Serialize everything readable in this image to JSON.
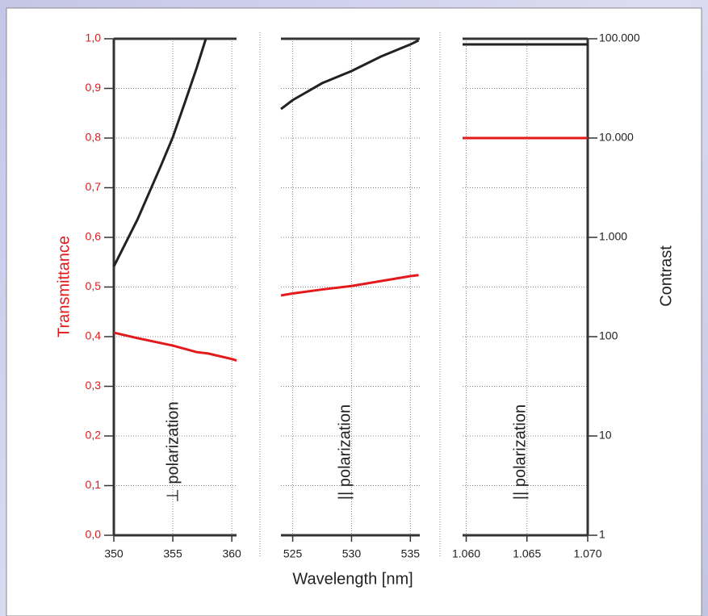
{
  "chart_data": [
    {
      "type": "line",
      "ylabel": "Transmittance",
      "annotation": "⊥ polarization",
      "x": [
        350,
        352,
        354,
        355,
        356,
        357,
        357.8
      ],
      "xlim": [
        350,
        360.4
      ],
      "xticks": [
        350,
        355,
        360
      ],
      "ylim": [
        0,
        1
      ],
      "yticks": [
        {
          "value": 0,
          "label": "0,0"
        },
        {
          "value": 0.1,
          "label": "0,1"
        },
        {
          "value": 0.2,
          "label": "0,2"
        },
        {
          "value": 0.3,
          "label": "0,3"
        },
        {
          "value": 0.4,
          "label": "0,4"
        },
        {
          "value": 0.5,
          "label": "0,5"
        },
        {
          "value": 0.6,
          "label": "0,6"
        },
        {
          "value": 0.7,
          "label": "0,7"
        },
        {
          "value": 0.8,
          "label": "0,8"
        },
        {
          "value": 0.9,
          "label": "0,9"
        },
        {
          "value": 1,
          "label": "1,0"
        }
      ],
      "y2lim": [
        1,
        100000
      ],
      "y2log": true,
      "grid": true,
      "series": [
        {
          "color": "#222222",
          "axis": "y2",
          "values": [
            509,
            1510,
            5300,
            10200,
            22400,
            50000,
            100000
          ]
        },
        {
          "color": "#e3191c",
          "x": [
            350,
            352,
            355,
            357,
            358,
            360,
            360.4
          ],
          "values": [
            0.408,
            0.397,
            0.382,
            0.369,
            0.366,
            0.355,
            0.352
          ]
        }
      ]
    },
    {
      "type": "line",
      "xlabel": "Wavelength [nm]",
      "annotation": "|| polarization",
      "x": [
        524,
        525,
        527.5,
        530,
        532.5,
        535,
        535.7
      ],
      "xlim": [
        524,
        535.8
      ],
      "xticks": [
        525,
        530,
        535
      ],
      "ylim": [
        0,
        1
      ],
      "y2lim": [
        1,
        100000
      ],
      "y2log": true,
      "grid": true,
      "series": [
        {
          "color": "#222222",
          "axis": "y2",
          "values": [
            19600,
            24100,
            35700,
            47300,
            66200,
            87700,
            96300
          ]
        },
        {
          "color": "#e3191c",
          "values": [
            0.483,
            0.487,
            0.495,
            0.502,
            0.512,
            0.522,
            0.524
          ]
        }
      ]
    },
    {
      "type": "line",
      "y2label": "Contrast",
      "annotation": "|| polarization",
      "x": [
        1.0597,
        1.07
      ],
      "xlim": [
        1.0597,
        1.07
      ],
      "xticks": [
        {
          "value": 1.06,
          "label": "1.060"
        },
        {
          "value": 1.065,
          "label": "1.065"
        },
        {
          "value": 1.07,
          "label": "1.070"
        }
      ],
      "ylim": [
        0,
        1
      ],
      "y2lim": [
        1,
        100000
      ],
      "y2log": true,
      "grid": true,
      "y2ticks": [
        {
          "value": 1,
          "label": "1"
        },
        {
          "value": 10,
          "label": "10"
        },
        {
          "value": 100,
          "label": "100"
        },
        {
          "value": 1000,
          "label": "1.000"
        },
        {
          "value": 10000,
          "label": "10.000"
        },
        {
          "value": 100000,
          "label": "100.000"
        }
      ],
      "series": [
        {
          "color": "#222222",
          "axis": "y2",
          "values": [
            87700,
            87700
          ]
        },
        {
          "color": "#e3191c",
          "values": [
            0.8,
            0.8
          ]
        }
      ]
    }
  ]
}
